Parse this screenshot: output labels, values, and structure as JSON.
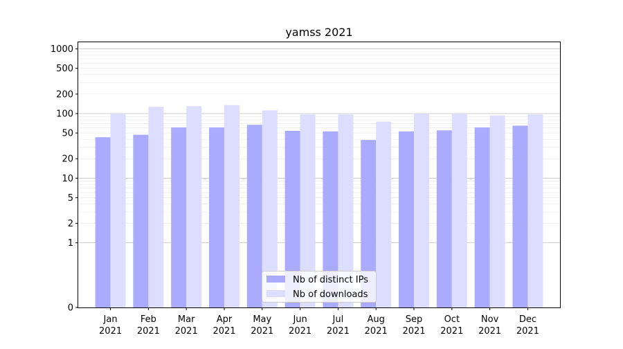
{
  "chart_data": {
    "type": "bar",
    "title": "yamss 2021",
    "xlabel": "",
    "ylabel": "",
    "scale": "symlog",
    "ylim": [
      0,
      1300
    ],
    "yticks": [
      {
        "value": 0,
        "label": "0"
      },
      {
        "value": 1,
        "label": "1"
      },
      {
        "value": 2,
        "label": "2"
      },
      {
        "value": 5,
        "label": "5"
      },
      {
        "value": 10,
        "label": "10"
      },
      {
        "value": 20,
        "label": "20"
      },
      {
        "value": 50,
        "label": "50"
      },
      {
        "value": 100,
        "label": "100"
      },
      {
        "value": 200,
        "label": "200"
      },
      {
        "value": 500,
        "label": "500"
      },
      {
        "value": 1000,
        "label": "1000"
      }
    ],
    "categories": [
      {
        "month": "Jan",
        "year": "2021"
      },
      {
        "month": "Feb",
        "year": "2021"
      },
      {
        "month": "Mar",
        "year": "2021"
      },
      {
        "month": "Apr",
        "year": "2021"
      },
      {
        "month": "May",
        "year": "2021"
      },
      {
        "month": "Jun",
        "year": "2021"
      },
      {
        "month": "Jul",
        "year": "2021"
      },
      {
        "month": "Aug",
        "year": "2021"
      },
      {
        "month": "Sep",
        "year": "2021"
      },
      {
        "month": "Oct",
        "year": "2021"
      },
      {
        "month": "Nov",
        "year": "2021"
      },
      {
        "month": "Dec",
        "year": "2021"
      }
    ],
    "series": [
      {
        "name": "Nb of distinct IPs",
        "color": "#aaaaff",
        "values": [
          43,
          47,
          61,
          61,
          67,
          54,
          53,
          39,
          53,
          55,
          61,
          65
        ]
      },
      {
        "name": "Nb of downloads",
        "color": "#ddddff",
        "values": [
          100,
          127,
          130,
          135,
          112,
          97,
          97,
          75,
          100,
          100,
          93,
          97
        ]
      }
    ],
    "grid": true,
    "legend_position": "bottom-center"
  }
}
